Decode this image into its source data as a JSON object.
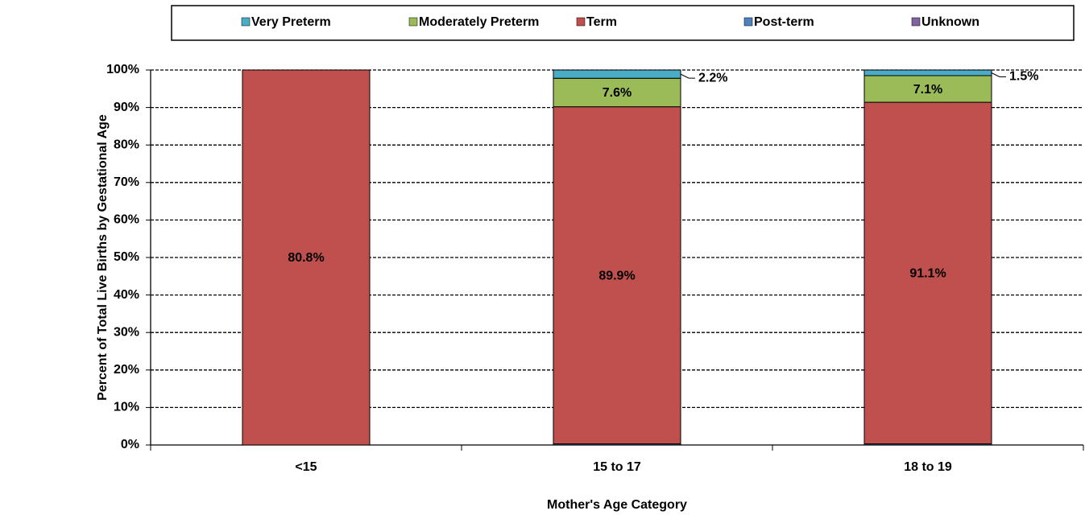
{
  "chart_data": {
    "type": "bar",
    "stacking": "percent",
    "categories": [
      "<15",
      "15 to 17",
      "18 to 19"
    ],
    "series": [
      {
        "name": "Very Preterm",
        "color": "#4bacc6",
        "values": [
          0,
          2.2,
          1.5
        ],
        "value_labels": [
          null,
          "2.2%",
          "1.5%"
        ]
      },
      {
        "name": "Moderately Preterm",
        "color": "#9bbb59",
        "values": [
          0,
          7.6,
          7.1
        ],
        "value_labels": [
          null,
          "7.6%",
          "7.1%"
        ]
      },
      {
        "name": "Term",
        "color": "#c0504d",
        "values": [
          80.8,
          89.9,
          91.1
        ],
        "value_labels": [
          "80.8%",
          "89.9%",
          "91.1%"
        ]
      },
      {
        "name": "Post-term",
        "color": "#4f81bd",
        "values": [
          0,
          0.3,
          0.3
        ],
        "value_labels": [
          null,
          null,
          null
        ]
      },
      {
        "name": "Unknown",
        "color": "#8064a2",
        "values": [
          0,
          0,
          0
        ],
        "value_labels": [
          null,
          null,
          null
        ]
      }
    ],
    "x_label": "Mother's Age Category",
    "y_label": "Percent of Total Live Births by Gestational Age",
    "ylim": [
      0,
      100
    ],
    "yticks": [
      {
        "value": 0,
        "label": "0%"
      },
      {
        "value": 10,
        "label": "10%"
      },
      {
        "value": 20,
        "label": "20%"
      },
      {
        "value": 30,
        "label": "30%"
      },
      {
        "value": 40,
        "label": "40%"
      },
      {
        "value": 50,
        "label": "50%"
      },
      {
        "value": 60,
        "label": "60%"
      },
      {
        "value": 70,
        "label": "70%"
      },
      {
        "value": 80,
        "label": "80%"
      },
      {
        "value": 90,
        "label": "90%"
      },
      {
        "value": 100,
        "label": "100%"
      }
    ],
    "grid": true,
    "legend": "top"
  }
}
